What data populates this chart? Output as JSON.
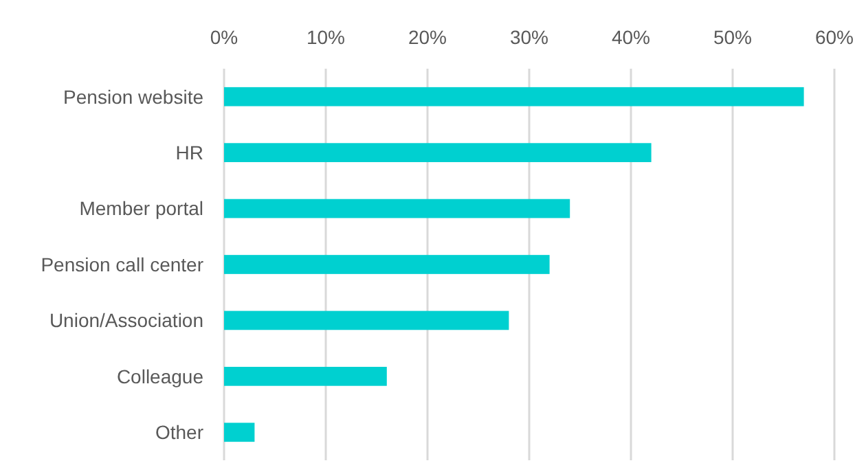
{
  "chart_data": {
    "type": "bar",
    "orientation": "horizontal",
    "categories": [
      "Pension website",
      "HR",
      "Member portal",
      "Pension call center",
      "Union/Association",
      "Colleague",
      "Other"
    ],
    "values": [
      57,
      42,
      34,
      32,
      28,
      16,
      3
    ],
    "color": "#00d0d0",
    "xlim": [
      0,
      60
    ],
    "xticks": [
      {
        "value": 0,
        "label": "0%"
      },
      {
        "value": 10,
        "label": "10%"
      },
      {
        "value": 20,
        "label": "20%"
      },
      {
        "value": 30,
        "label": "30%"
      },
      {
        "value": 40,
        "label": "40%"
      },
      {
        "value": 50,
        "label": "50%"
      },
      {
        "value": 60,
        "label": "60%"
      }
    ],
    "grid": "x"
  }
}
